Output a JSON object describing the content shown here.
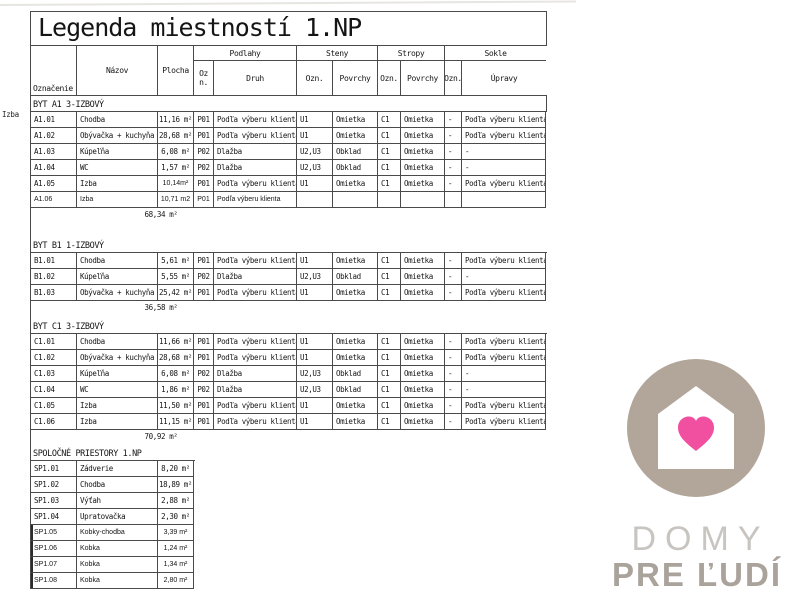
{
  "sheet": {
    "stray_label": "Izba"
  },
  "legend": {
    "title": "Legenda miestností 1.NP",
    "header": {
      "oznacenie": "Označenie",
      "nazov": "Názov",
      "plocha": "Plocha",
      "podlahy": "Podlahy",
      "steny": "Steny",
      "stropy": "Stropy",
      "sokle": "Sokle",
      "podlahy_ozn": "Oz n.",
      "druh": "Druh",
      "ozn": "Ozn.",
      "povrchy": "Povrchy",
      "upravy": "Úpravy"
    },
    "sections": [
      {
        "label": "BYT A1 3-IZBOVÝ",
        "band_h": 15,
        "band_right_border": true,
        "total": "68,34 m²",
        "gap_after": 12,
        "rows": [
          {
            "cells": [
              "A1.01",
              "Chodba",
              "11,16 m²",
              "P01",
              "Podľa výberu klienta",
              "U1",
              "Omietka",
              "C1",
              "Omietka",
              "-",
              "Podľa výberu klienta"
            ]
          },
          {
            "cells": [
              "A1.02",
              "Obývačka + kuchyňa",
              "28,68 m²",
              "P01",
              "Podľa výberu klienta",
              "U1",
              "Omietka",
              "C1",
              "Omietka",
              "-",
              "Podľa výberu klienta"
            ]
          },
          {
            "cells": [
              "A1.03",
              "Kúpeľňa",
              "6,08 m²",
              "P02",
              "Dlažba",
              "U2,U3",
              "Obklad",
              "C1",
              "Omietka",
              "-",
              "-"
            ]
          },
          {
            "cells": [
              "A1.04",
              "WC",
              "1,57 m²",
              "P02",
              "Dlažba",
              "U2,U3",
              "Obklad",
              "C1",
              "Omietka",
              "-",
              "-"
            ]
          },
          {
            "cells": [
              "A1.05",
              "Izba",
              "10,14m²",
              "P01",
              "Podľa výberu klienta",
              "U1",
              "Omietka",
              "C1",
              "Omietka",
              "-",
              "Podľa výberu klienta"
            ],
            "patch_cells": [
              2
            ]
          },
          {
            "cells": [
              "A1.06",
              "Izba",
              "10,71 m2",
              "P01",
              "Podľa výberu klienta",
              "",
              "",
              "",
              "",
              "",
              ""
            ],
            "style": "patch"
          }
        ]
      },
      {
        "label": "BYT B1 1-IZBOVÝ",
        "band_h": 16,
        "total": "36,58 m²",
        "gap_after": 0,
        "rows": [
          {
            "cells": [
              "B1.01",
              "Chodba",
              "5,61 m²",
              "P01",
              "Podľa výberu klienta",
              "U1",
              "Omietka",
              "C1",
              "Omietka",
              "-",
              "Podľa výberu klienta"
            ]
          },
          {
            "cells": [
              "B1.02",
              "Kúpeľňa",
              "5,55 m²",
              "P02",
              "Dlažba",
              "U2,U3",
              "Obklad",
              "C1",
              "Omietka",
              "-",
              "-"
            ]
          },
          {
            "cells": [
              "B1.03",
              "Obývačka + kuchyňa",
              "25,42 m²",
              "P01",
              "Podľa výberu klienta",
              "U1",
              "Omietka",
              "C1",
              "Omietka",
              "-",
              "Podľa výberu klienta"
            ]
          }
        ]
      },
      {
        "label": "BYT C1 3-IZBOVÝ",
        "band_h": 16,
        "total": "70,92 m²",
        "gap_after": 0,
        "rows": [
          {
            "cells": [
              "C1.01",
              "Chodba",
              "11,66 m²",
              "P01",
              "Podľa výberu klienta",
              "U1",
              "Omietka",
              "C1",
              "Omietka",
              "-",
              "Podľa výberu klienta"
            ]
          },
          {
            "cells": [
              "C1.02",
              "Obývačka + kuchyňa",
              "28,68 m²",
              "P01",
              "Podľa výberu klienta",
              "U1",
              "Omietka",
              "C1",
              "Omietka",
              "-",
              "Podľa výberu klienta"
            ]
          },
          {
            "cells": [
              "C1.03",
              "Kúpeľňa",
              "6,08 m²",
              "P02",
              "Dlažba",
              "U2,U3",
              "Obklad",
              "C1",
              "Omietka",
              "-",
              "-"
            ]
          },
          {
            "cells": [
              "C1.04",
              "WC",
              "1,86 m²",
              "P02",
              "Dlažba",
              "U2,U3",
              "Obklad",
              "C1",
              "Omietka",
              "-",
              "-"
            ]
          },
          {
            "cells": [
              "C1.05",
              "Izba",
              "11,50 m²",
              "P01",
              "Podľa výberu klienta",
              "U1",
              "Omietka",
              "C1",
              "Omietka",
              "-",
              "Podľa výberu klienta"
            ]
          },
          {
            "cells": [
              "C1.06",
              "Izba",
              "11,15 m²",
              "P01",
              "Podľa výberu klienta",
              "U1",
              "Omietka",
              "C1",
              "Omietka",
              "-",
              "Podľa výberu klienta"
            ]
          }
        ]
      },
      {
        "label": "SPOLOČNÉ PRIESTORY 1.NP",
        "band_h": 14,
        "narrow": true,
        "rows": [
          {
            "cells": [
              "SP1.01",
              "Zádverie",
              "8,20 m²"
            ]
          },
          {
            "cells": [
              "SP1.02",
              "Chodba",
              "18,89 m²"
            ]
          },
          {
            "cells": [
              "SP1.03",
              "Výťah",
              "2,88 m²"
            ]
          },
          {
            "cells": [
              "SP1.04",
              "Upratovačka",
              "2,30 m²"
            ]
          },
          {
            "cells": [
              "SP1.05",
              "Kobky-chodba",
              "3,39 m²"
            ],
            "style": "patch",
            "thick_left": true
          },
          {
            "cells": [
              "SP1.06",
              "Kobka",
              "1,24 m²"
            ],
            "style": "patch",
            "thick_left": true
          },
          {
            "cells": [
              "SP1.07",
              "Kobka",
              "1,34 m²"
            ],
            "style": "patch",
            "thick_left": true
          },
          {
            "cells": [
              "SP1.08",
              "Kobka",
              "2,80 m²"
            ],
            "style": "patch",
            "thick_left": true
          }
        ]
      }
    ]
  },
  "logo": {
    "line1": "DOMY",
    "line2": "PRE ĽUDÍ",
    "circle_color": "#b2a69a",
    "heart_color": "#f0509f",
    "line1_color": "#c8c5c1",
    "line2_color": "#aaa39b"
  }
}
